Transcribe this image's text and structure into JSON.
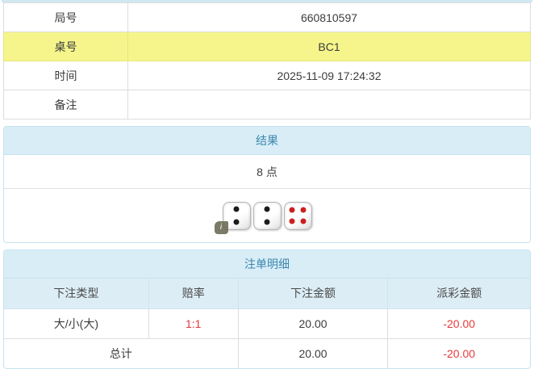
{
  "colors": {
    "accent_red": "#e8393b",
    "highlight_yellow": "#f5f58c",
    "panel_header_bg": "#d9edf7",
    "panel_header_text": "#3a87ad"
  },
  "info_table": {
    "rows": [
      {
        "label": "局号",
        "value": "660810597"
      },
      {
        "label": "桌号",
        "value": "BC1"
      },
      {
        "label": "时间",
        "value": "2025-11-09 17:24:32"
      },
      {
        "label": "备注",
        "value": ""
      }
    ]
  },
  "result_panel": {
    "title": "结果",
    "points": "8 点",
    "dice": [
      {
        "value": 2,
        "color": "black"
      },
      {
        "value": 2,
        "color": "black"
      },
      {
        "value": 4,
        "color": "red"
      }
    ],
    "info_icon": "i"
  },
  "bets_panel": {
    "title": "注单明细",
    "columns": [
      "下注类型",
      "赔率",
      "下注金额",
      "派彩金额"
    ],
    "rows": [
      {
        "type": "大/小(大)",
        "odds": "1:1",
        "bet": "20.00",
        "payout": "-20.00"
      }
    ],
    "total": {
      "label": "总计",
      "bet": "20.00",
      "payout": "-20.00"
    }
  }
}
